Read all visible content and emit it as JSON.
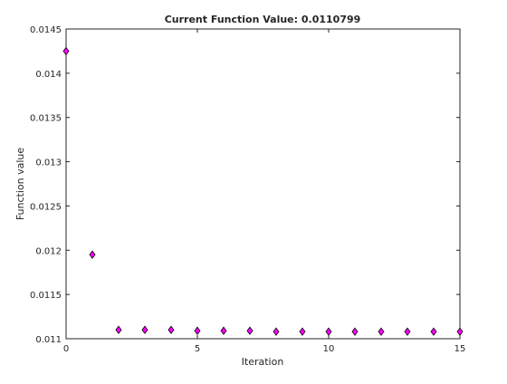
{
  "chart_data": {
    "type": "scatter",
    "title": "Current Function Value: 0.0110799",
    "xlabel": "Iteration",
    "ylabel": "Function value",
    "xlim": [
      0,
      15
    ],
    "ylim": [
      0.011,
      0.0145
    ],
    "xticks": [
      0,
      5,
      10,
      15
    ],
    "xtick_labels": [
      "0",
      "5",
      "10",
      "15"
    ],
    "yticks": [
      0.011,
      0.0115,
      0.012,
      0.0125,
      0.013,
      0.0135,
      0.014,
      0.0145
    ],
    "ytick_labels": [
      "0.011",
      "0.0115",
      "0.012",
      "0.0125",
      "0.013",
      "0.0135",
      "0.014",
      "0.0145"
    ],
    "grid": false,
    "legend": false,
    "marker": "diamond",
    "marker_color": "#ff00ff",
    "marker_edge_color": "#000000",
    "axis_color": "#262626",
    "x": [
      0,
      1,
      2,
      3,
      4,
      5,
      6,
      7,
      8,
      9,
      10,
      11,
      12,
      13,
      14,
      15
    ],
    "y": [
      0.01425,
      0.01195,
      0.0111,
      0.0111,
      0.0111,
      0.01109,
      0.01109,
      0.01109,
      0.01108,
      0.01108,
      0.01108,
      0.01108,
      0.01108,
      0.01108,
      0.01108,
      0.01108
    ]
  }
}
